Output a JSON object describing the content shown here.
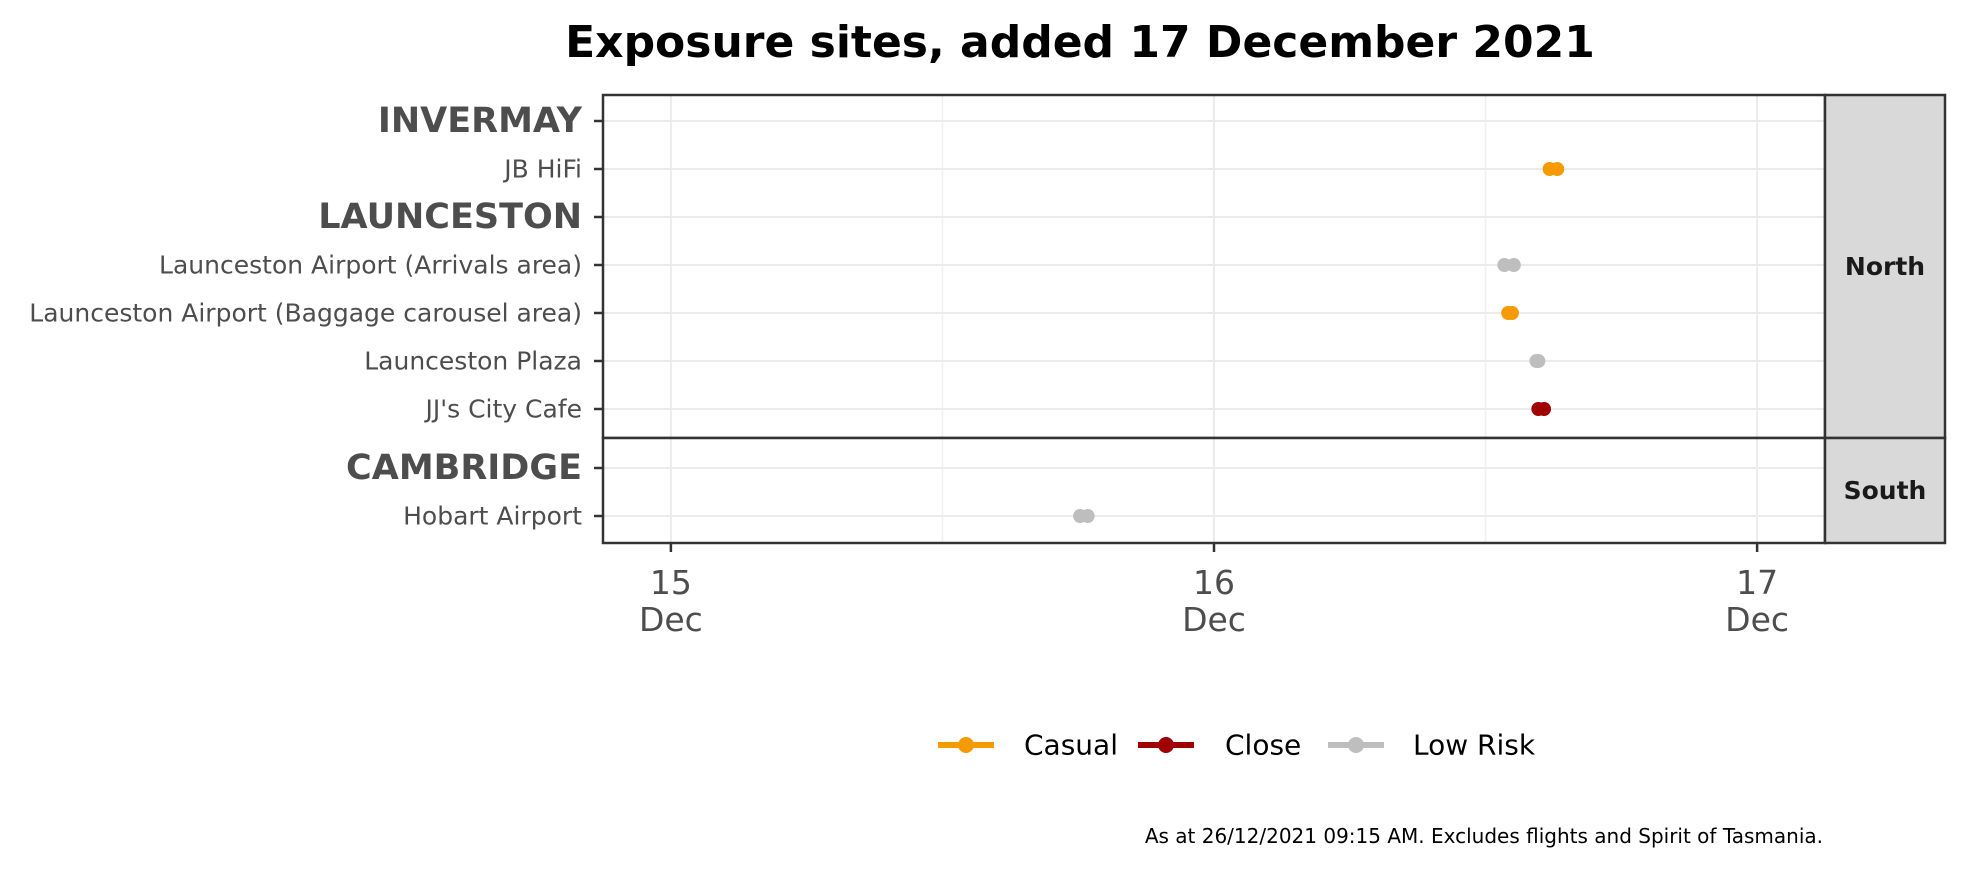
{
  "chart_data": {
    "type": "dumbbell",
    "title": "Exposure sites, added 17 December 2021",
    "xlabel": "",
    "ylabel": "",
    "x_axis": {
      "ticks": [
        {
          "value": "2021-12-15",
          "line1": "15",
          "line2": "Dec"
        },
        {
          "value": "2021-12-16",
          "line1": "16",
          "line2": "Dec"
        },
        {
          "value": "2021-12-17",
          "line1": "17",
          "line2": "Dec"
        }
      ],
      "xlim": [
        "2021-12-14T21:00",
        "2021-12-17T03:00"
      ]
    },
    "facets": [
      {
        "label": "North",
        "rows": [
          {
            "label": "INVERMAY",
            "group_header": true
          },
          {
            "label": "JB HiFi",
            "risk": "Casual",
            "start": "2021-12-16T14:50",
            "end": "2021-12-16T15:10"
          },
          {
            "label": "LAUNCESTON",
            "group_header": true
          },
          {
            "label": "Launceston Airport (Arrivals area)",
            "risk": "Low Risk",
            "start": "2021-12-16T12:50",
            "end": "2021-12-16T13:15"
          },
          {
            "label": "Launceston Airport (Baggage carousel area)",
            "risk": "Casual",
            "start": "2021-12-16T13:00",
            "end": "2021-12-16T13:10"
          },
          {
            "label": "Launceston Plaza",
            "risk": "Low Risk",
            "start": "2021-12-16T14:15",
            "end": "2021-12-16T14:20"
          },
          {
            "label": "JJ's City Cafe",
            "risk": "Close",
            "start": "2021-12-16T14:20",
            "end": "2021-12-16T14:35"
          }
        ]
      },
      {
        "label": "South",
        "rows": [
          {
            "label": "CAMBRIDGE",
            "group_header": true
          },
          {
            "label": "Hobart Airport",
            "risk": "Low Risk",
            "start": "2021-12-15T18:05",
            "end": "2021-12-15T18:25"
          }
        ]
      }
    ],
    "legend": {
      "position": "bottom",
      "entries": [
        {
          "label": "Casual",
          "color": "#F59B00"
        },
        {
          "label": "Close",
          "color": "#A00000"
        },
        {
          "label": "Low Risk",
          "color": "#BEBEBE"
        }
      ]
    },
    "grid": true,
    "caption": "As at 26/12/2021 09:15 AM. Excludes flights and Spirit of Tasmania."
  }
}
